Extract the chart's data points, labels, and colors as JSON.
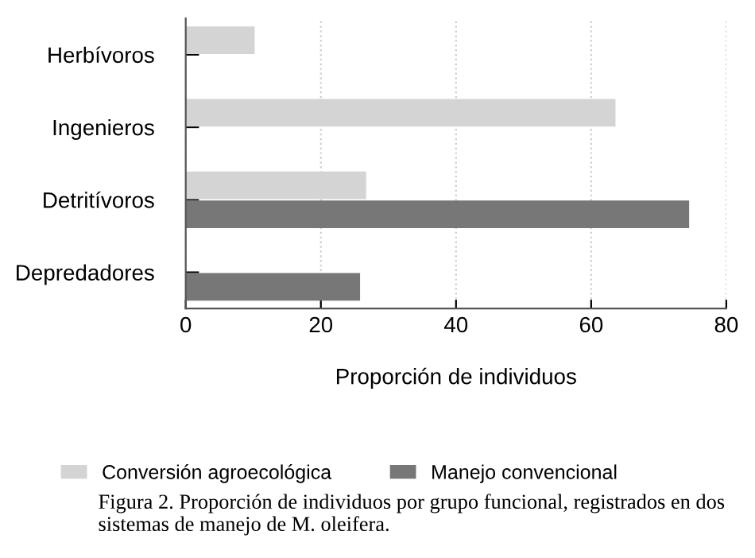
{
  "chart_data": {
    "type": "bar",
    "orientation": "horizontal",
    "xlabel": "Proporción de individuos",
    "categories": [
      "Herbívoros",
      "Ingenieros",
      "Detritívoros",
      "Depredadores"
    ],
    "series": [
      {
        "name": "Conversión agroecológica",
        "color": "#d4d4d4",
        "values": [
          10.2,
          63.6,
          26.7,
          null
        ]
      },
      {
        "name": "Manejo convencional",
        "color": "#777777",
        "values": [
          null,
          null,
          74.5,
          25.8
        ]
      }
    ],
    "xlim": [
      0,
      80
    ],
    "xticks": [
      0,
      20,
      40,
      60,
      80
    ],
    "grid": "x",
    "legend": "bottom",
    "annotations": [
      "Figura 2. Proporción de individuos por grupo funcional, registrados en dos sistemas de manejo de M. oleifera."
    ]
  }
}
